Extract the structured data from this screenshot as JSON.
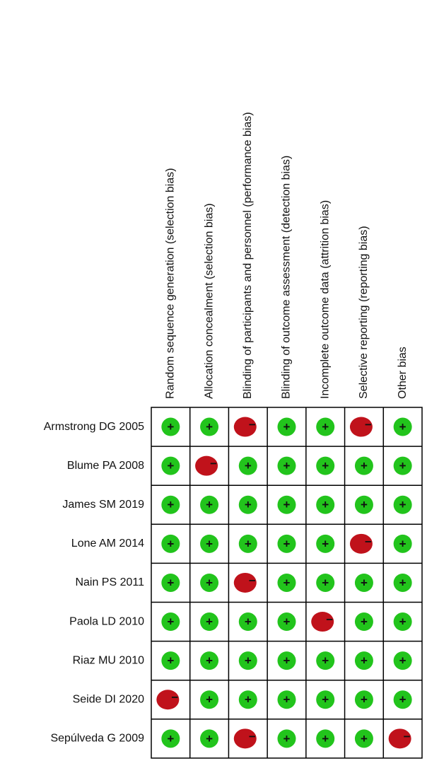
{
  "domains": [
    "Random sequence generation (selection bias)",
    "Allocation concealment (selection bias)",
    "Blinding of participants and personnel (performance bias)",
    "Blinding of outcome assessment (detection bias)",
    "Incomplete outcome data (attrition bias)",
    "Selective reporting (reporting bias)",
    "Other bias"
  ],
  "colors": {
    "+": "#22c41c",
    "−": "#c0121b"
  },
  "rows": [
    {
      "study": "Armstrong DG 2005",
      "judgments": [
        "+",
        "+",
        "−",
        "+",
        "+",
        "−",
        "+"
      ]
    },
    {
      "study": "Blume PA 2008",
      "judgments": [
        "+",
        "−",
        "+",
        "+",
        "+",
        "+",
        "+"
      ]
    },
    {
      "study": "James SM 2019",
      "judgments": [
        "+",
        "+",
        "+",
        "+",
        "+",
        "+",
        "+"
      ]
    },
    {
      "study": "Lone AM 2014",
      "judgments": [
        "+",
        "+",
        "+",
        "+",
        "+",
        "−",
        "+"
      ]
    },
    {
      "study": "Nain PS 2011",
      "judgments": [
        "+",
        "+",
        "−",
        "+",
        "+",
        "+",
        "+"
      ]
    },
    {
      "study": "Paola LD 2010",
      "judgments": [
        "+",
        "+",
        "+",
        "+",
        "−",
        "+",
        "+"
      ]
    },
    {
      "study": "Riaz MU 2010",
      "judgments": [
        "+",
        "+",
        "+",
        "+",
        "+",
        "+",
        "+"
      ]
    },
    {
      "study": "Seide DI 2020",
      "judgments": [
        "−",
        "+",
        "+",
        "+",
        "+",
        "+",
        "+"
      ]
    },
    {
      "study": "Sepúlveda G 2009",
      "judgments": [
        "+",
        "+",
        "−",
        "+",
        "+",
        "+",
        "−"
      ]
    }
  ]
}
